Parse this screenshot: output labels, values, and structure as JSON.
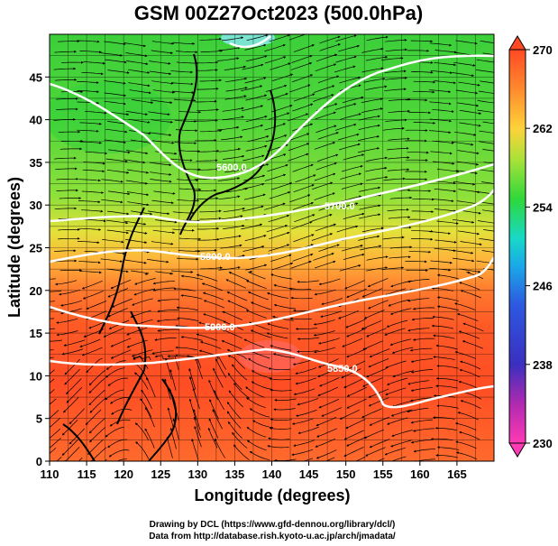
{
  "title": "GSM 00Z27Oct2023 (500.0hPa)",
  "map": {
    "xlabel": "Longitude (degrees)",
    "ylabel": "Latitude  (degrees)",
    "xlim": [
      110,
      170
    ],
    "ylim": [
      0,
      50
    ],
    "x_ticks": [
      "110",
      "115",
      "120",
      "125",
      "130",
      "135",
      "140",
      "145",
      "150",
      "155",
      "160",
      "165"
    ],
    "y_ticks": [
      "0",
      "5",
      "10",
      "15",
      "20",
      "25",
      "30",
      "35",
      "40",
      "45"
    ],
    "contour_labels": [
      "5600.0",
      "5700.0",
      "5800.0",
      "5900.0",
      "5850.0"
    ]
  },
  "colorbar": {
    "ticks": [
      "230",
      "238",
      "246",
      "254",
      "262",
      "270"
    ],
    "range": [
      230,
      270
    ]
  },
  "credits": {
    "line1": "Drawing by DCL (https://www.gfd-dennou.org/library/dcl/)",
    "line2": "Data from http://database.rish.kyoto-u.ac.jp/arch/jmadata/"
  }
}
